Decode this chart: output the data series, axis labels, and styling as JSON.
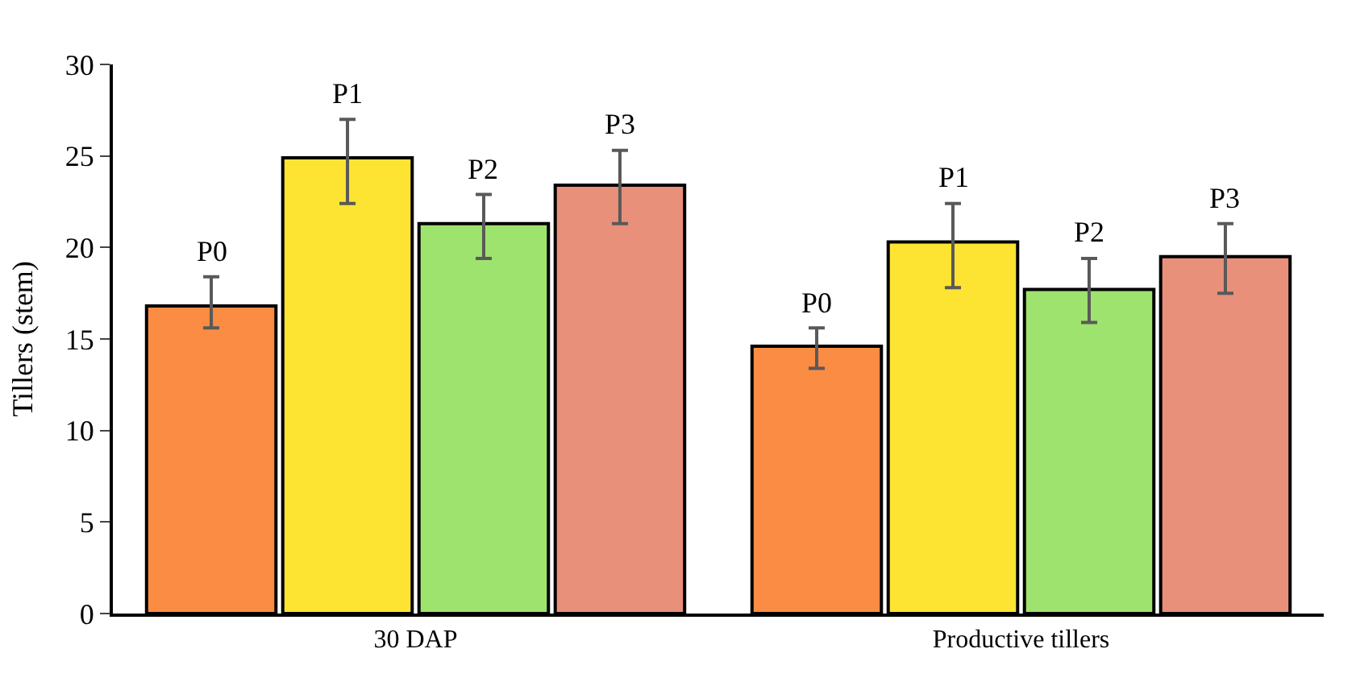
{
  "chart_data": {
    "type": "bar",
    "ylabel": "Tillers (stem)",
    "categories": [
      "30 DAP",
      "Productive tillers"
    ],
    "series": [
      {
        "name": "P0",
        "color": "#fb8c44",
        "values": [
          16.8,
          14.6
        ],
        "errors": [
          [
            15.6,
            18.4
          ],
          [
            13.4,
            15.6
          ]
        ]
      },
      {
        "name": "P1",
        "color": "#fde432",
        "values": [
          24.9,
          20.3
        ],
        "errors": [
          [
            22.4,
            27.0
          ],
          [
            17.8,
            22.4
          ]
        ]
      },
      {
        "name": "P2",
        "color": "#9ee36e",
        "values": [
          21.3,
          17.7
        ],
        "errors": [
          [
            19.4,
            22.9
          ],
          [
            15.9,
            19.4
          ]
        ]
      },
      {
        "name": "P3",
        "color": "#e8907a",
        "values": [
          23.4,
          19.5
        ],
        "errors": [
          [
            21.3,
            25.3
          ],
          [
            17.5,
            21.3
          ]
        ]
      }
    ],
    "ylim": [
      0,
      30
    ],
    "yticks": [
      0,
      5,
      10,
      15,
      20,
      25,
      30
    ]
  }
}
